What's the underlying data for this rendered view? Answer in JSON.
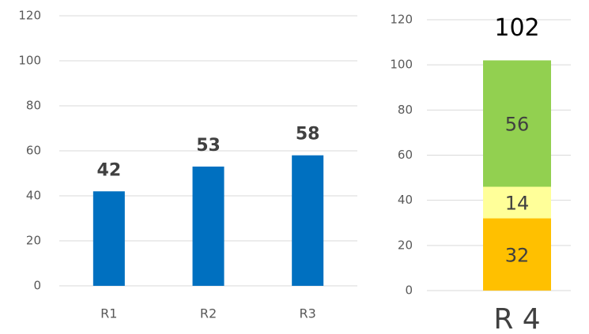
{
  "chart_data": [
    {
      "type": "bar",
      "categories": [
        "R1",
        "R2",
        "R3"
      ],
      "values": [
        42,
        53,
        58
      ],
      "color": "#0070c0",
      "ylim": [
        0,
        120
      ],
      "yticks": [
        0,
        20,
        40,
        60,
        80,
        100,
        120
      ],
      "grid": true
    },
    {
      "type": "stacked_bar",
      "categories": [
        "R 4"
      ],
      "series": [
        {
          "color": "#ffc000",
          "values": [
            32
          ]
        },
        {
          "color": "#ffff99",
          "values": [
            14
          ]
        },
        {
          "color": "#92d050",
          "values": [
            56
          ]
        }
      ],
      "annotation": "102",
      "ylim": [
        0,
        120
      ],
      "yticks": [
        0,
        20,
        40,
        60,
        80,
        100,
        120
      ],
      "grid": true
    }
  ]
}
